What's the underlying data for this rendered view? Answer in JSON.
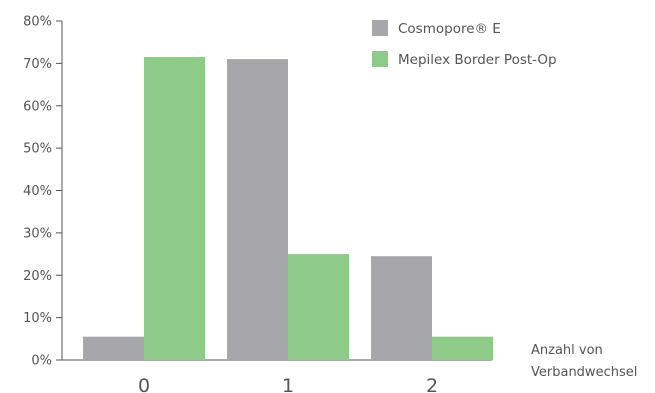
{
  "chart_data": {
    "type": "bar",
    "title": "",
    "xlabel": "Anzahl von Verbandwechsel",
    "xlabel_lines": [
      "Anzahl von",
      "Verbandwechsel"
    ],
    "ylabel": "",
    "categories": [
      "0",
      "1",
      "2"
    ],
    "ylim": [
      0,
      80
    ],
    "yticks": [
      0,
      10,
      20,
      30,
      40,
      50,
      60,
      70,
      80
    ],
    "ytick_labels": [
      "0%",
      "10%",
      "20%",
      "30%",
      "40%",
      "50%",
      "60%",
      "70%",
      "80%"
    ],
    "grid": false,
    "legend_position": "top-right",
    "series": [
      {
        "name": "Cosmopore® E",
        "color": "#a7a6ab",
        "values": [
          5.5,
          71,
          24.5
        ]
      },
      {
        "name": "Mepilex Border Post-Op",
        "color": "#8ecb89",
        "values": [
          71.5,
          25,
          5.5
        ]
      }
    ],
    "axis_color": "#555555"
  }
}
